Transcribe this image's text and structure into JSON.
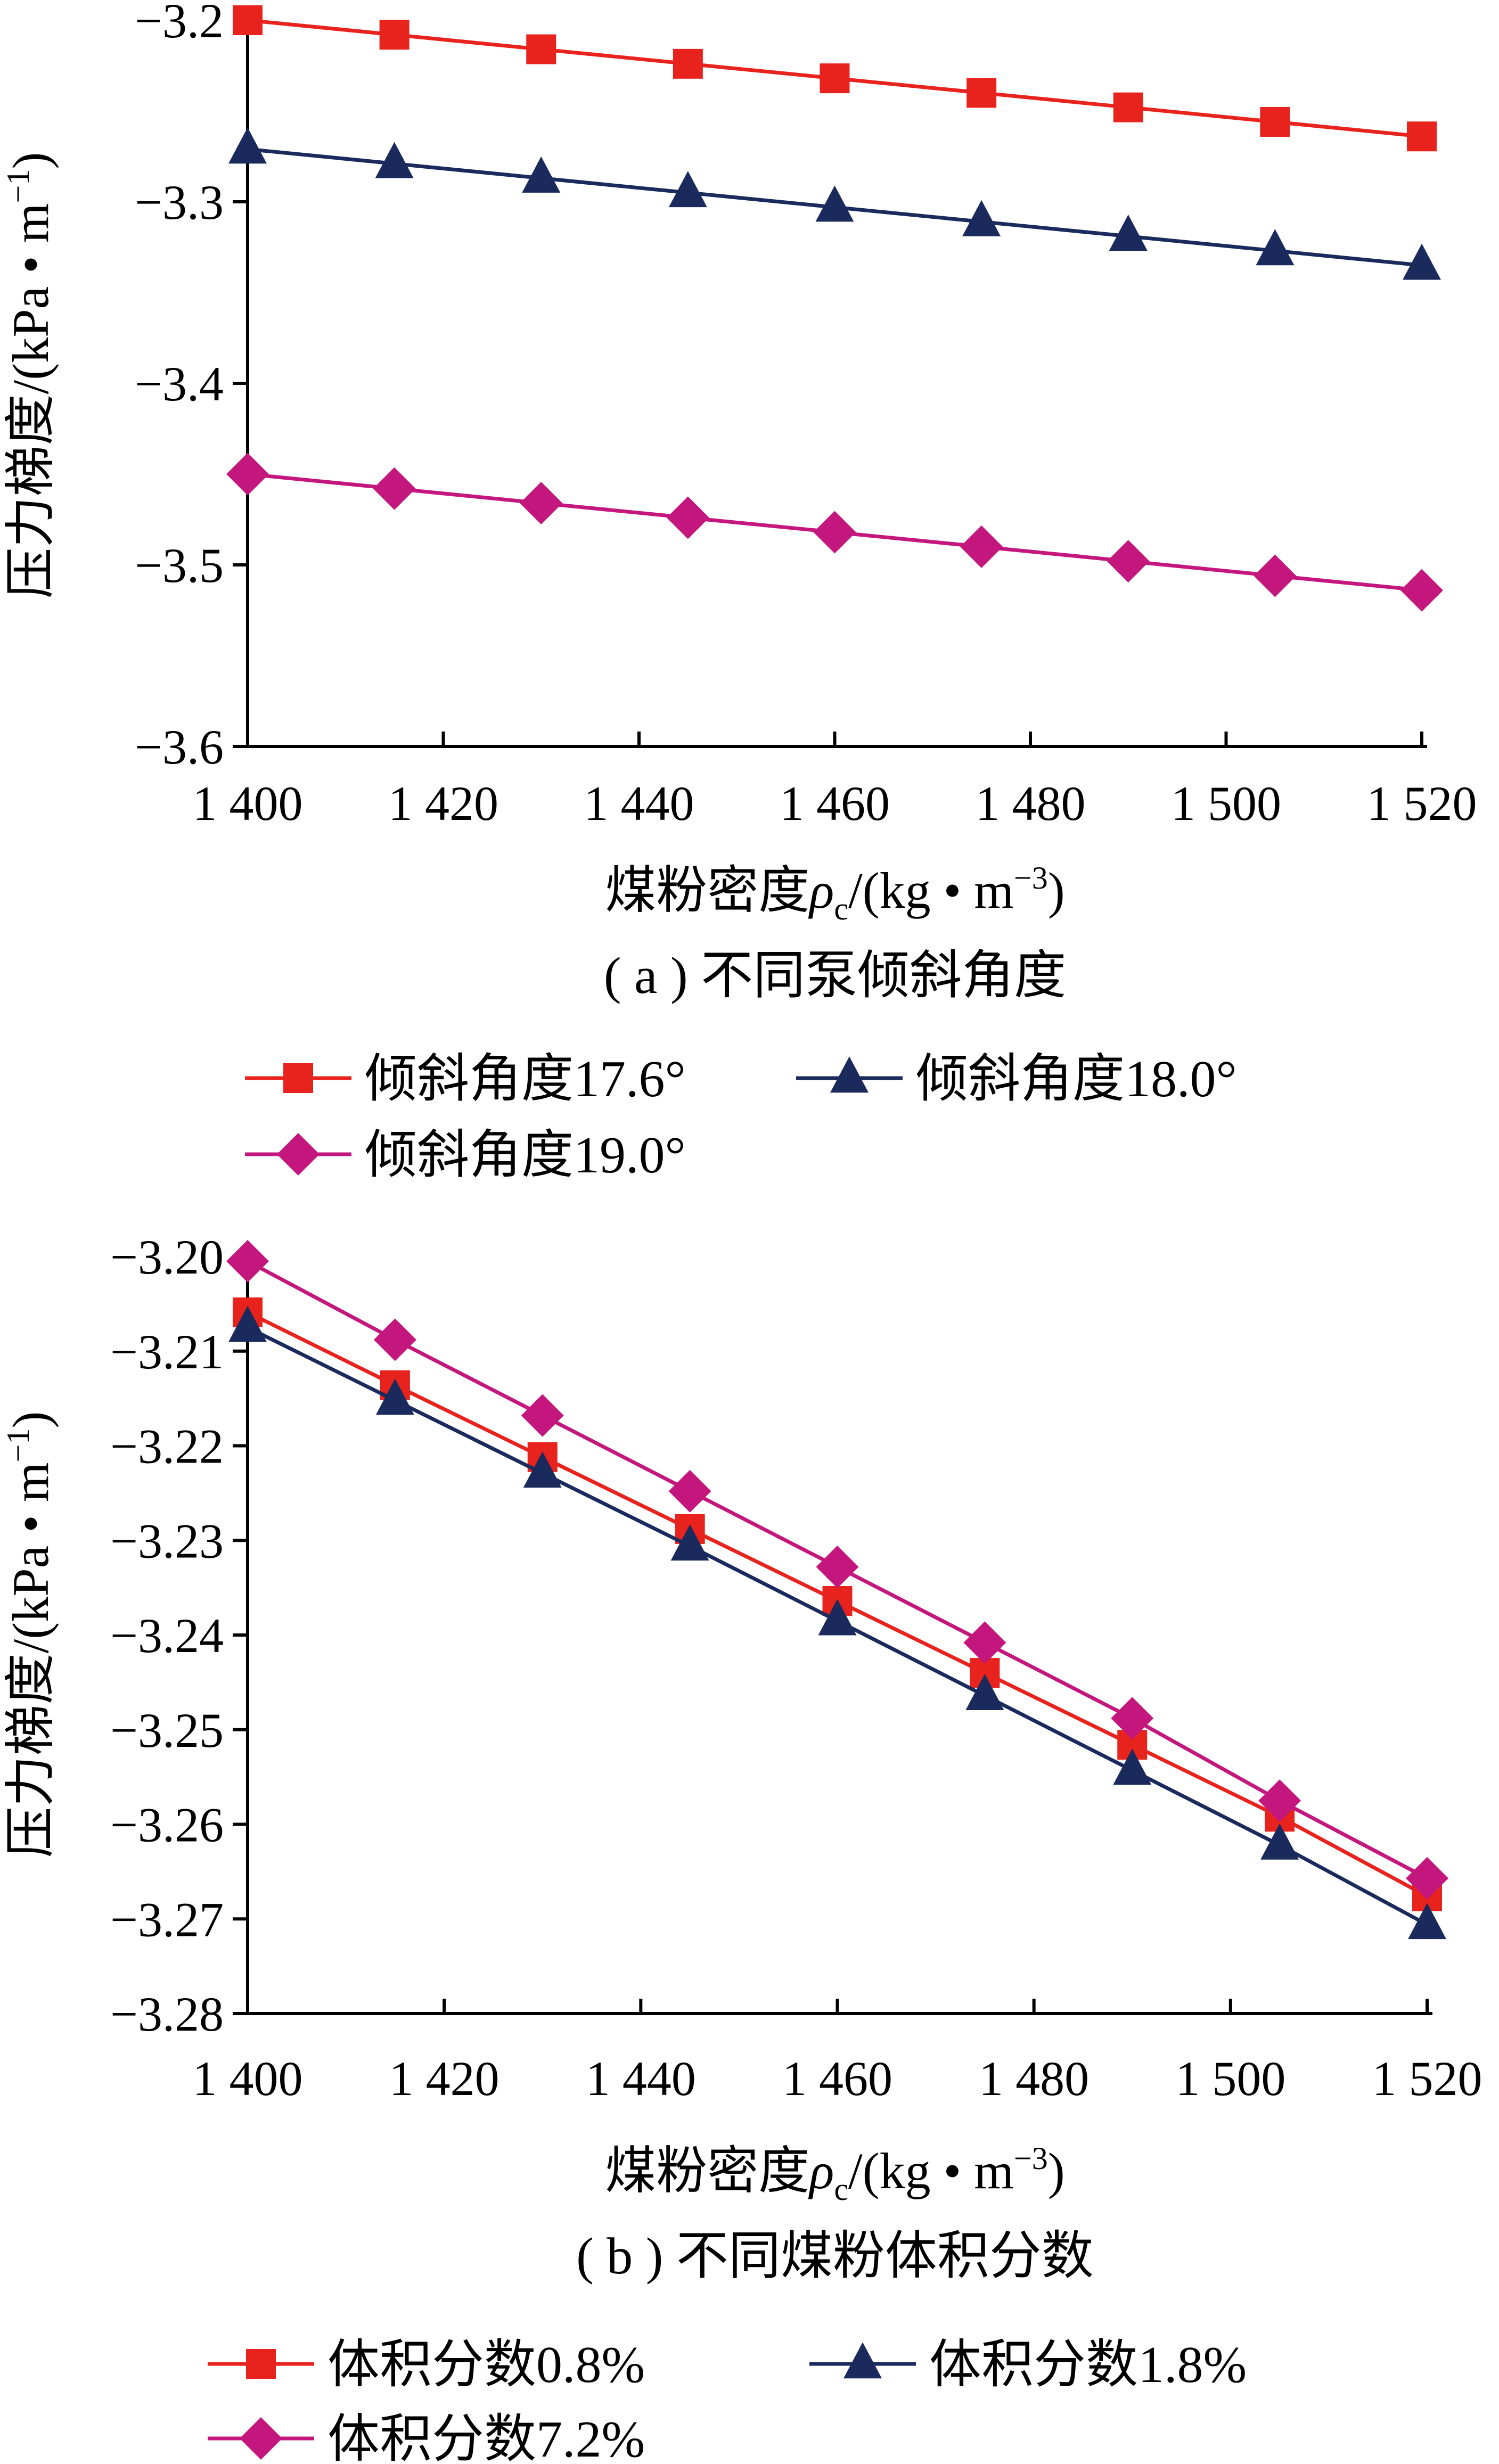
{
  "chart_data": [
    {
      "type": "line",
      "caption": "( a ) 不同泵倾斜角度",
      "xlabel_main": "煤粉密度",
      "xlabel_symbol": "ρ",
      "xlabel_sub": "c",
      "xlabel_unit": "/(kg • m",
      "xlabel_exp": "−3",
      "xlabel_close": ")",
      "ylabel": "压力梯度/(kPa • m",
      "ylabel_exp": "−1",
      "ylabel_close": ")",
      "xlim": [
        1400,
        1520
      ],
      "ylim": [
        -3.6,
        -3.2
      ],
      "x_ticks": [
        1400,
        1420,
        1440,
        1460,
        1480,
        1500,
        1520
      ],
      "x_tick_labels": [
        "1 400",
        "1 420",
        "1 440",
        "1 460",
        "1 480",
        "1 500",
        "1 520"
      ],
      "y_ticks": [
        -3.2,
        -3.3,
        -3.4,
        -3.5,
        -3.6
      ],
      "y_tick_labels": [
        "−3.2",
        "−3.3",
        "−3.4",
        "−3.5",
        "−3.6"
      ],
      "x": [
        1400,
        1415,
        1430,
        1445,
        1460,
        1475,
        1490,
        1505,
        1520
      ],
      "legend_position": "bottom",
      "series": [
        {
          "name": "倾斜角度17.6°",
          "color": "#e8231e",
          "marker": "square",
          "values": [
            -3.2,
            -3.208,
            -3.216,
            -3.224,
            -3.232,
            -3.24,
            -3.248,
            -3.256,
            -3.264
          ]
        },
        {
          "name": "倾斜角度18.0°",
          "color": "#1b2a5c",
          "marker": "triangle",
          "values": [
            -3.271,
            -3.279,
            -3.287,
            -3.295,
            -3.303,
            -3.311,
            -3.319,
            -3.327,
            -3.335
          ]
        },
        {
          "name": "倾斜角度19.0°",
          "color": "#c4177d",
          "marker": "diamond",
          "values": [
            -3.45,
            -3.458,
            -3.466,
            -3.474,
            -3.482,
            -3.49,
            -3.498,
            -3.506,
            -3.514
          ]
        }
      ]
    },
    {
      "type": "line",
      "caption": "( b ) 不同煤粉体积分数",
      "xlabel_main": "煤粉密度",
      "xlabel_symbol": "ρ",
      "xlabel_sub": "c",
      "xlabel_unit": "/(kg • m",
      "xlabel_exp": "−3",
      "xlabel_close": ")",
      "ylabel": "压力梯度/(kPa • m",
      "ylabel_exp": "−1",
      "ylabel_close": ")",
      "xlim": [
        1400,
        1520
      ],
      "ylim": [
        -3.28,
        -3.2
      ],
      "x_ticks": [
        1400,
        1420,
        1440,
        1460,
        1480,
        1500,
        1520
      ],
      "x_tick_labels": [
        "1 400",
        "1 420",
        "1 440",
        "1 460",
        "1 480",
        "1 500",
        "1 520"
      ],
      "y_ticks": [
        -3.2,
        -3.21,
        -3.22,
        -3.23,
        -3.24,
        -3.25,
        -3.26,
        -3.27,
        -3.28
      ],
      "y_tick_labels": [
        "−3.20",
        "−3.21",
        "−3.22",
        "−3.23",
        "−3.24",
        "−3.25",
        "−3.26",
        "−3.27",
        "−3.28"
      ],
      "x": [
        1400,
        1415,
        1430,
        1445,
        1460,
        1475,
        1490,
        1505,
        1520
      ],
      "legend_position": "bottom",
      "series": [
        {
          "name": "体积分数0.8%",
          "color": "#e8231e",
          "marker": "square",
          "values": [
            -3.2059,
            -3.2136,
            -3.2212,
            -3.2288,
            -3.2364,
            -3.244,
            -3.2516,
            -3.2592,
            -3.2676
          ]
        },
        {
          "name": "体积分数1.8%",
          "color": "#1b2a5c",
          "marker": "triangle",
          "values": [
            -3.2075,
            -3.2152,
            -3.2229,
            -3.2306,
            -3.2385,
            -3.2464,
            -3.2543,
            -3.2622,
            -3.2706
          ]
        },
        {
          "name": "体积分数7.2%",
          "color": "#c4177d",
          "marker": "diamond",
          "values": [
            -3.2005,
            -3.2088,
            -3.2168,
            -3.2248,
            -3.2328,
            -3.2408,
            -3.2488,
            -3.2575,
            -3.2657
          ]
        }
      ]
    }
  ]
}
